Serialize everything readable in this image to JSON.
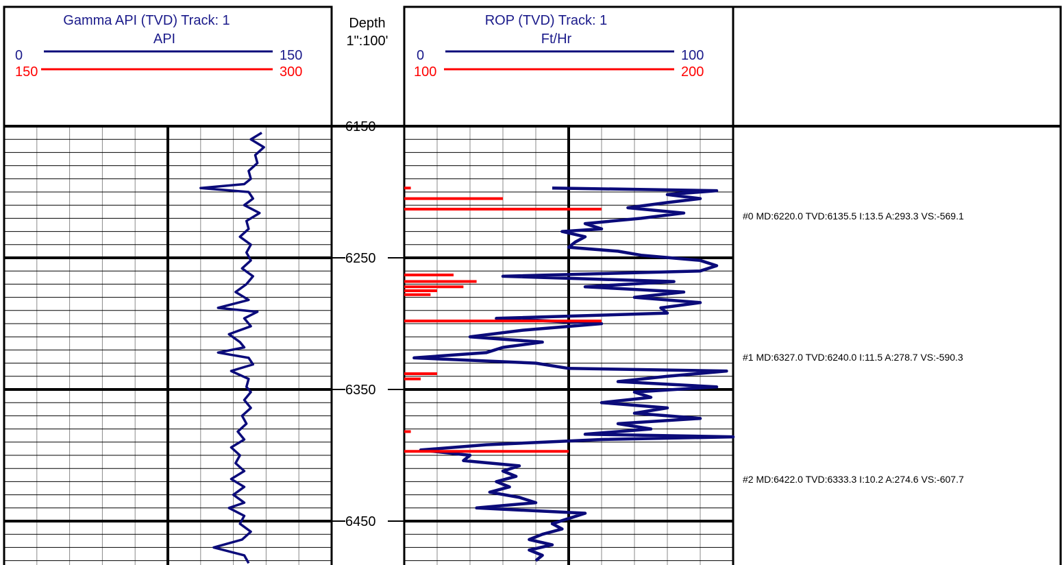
{
  "colors": {
    "gamma": "#0b0b7a",
    "red": "#ff0000",
    "grid": "#888888",
    "frame": "#000000"
  },
  "gamma_track": {
    "title": "Gamma API (TVD) Track: 1",
    "unit": "API",
    "scale_primary": {
      "left": "0",
      "right": "150"
    },
    "scale_secondary": {
      "left": "150",
      "right": "300"
    }
  },
  "depth_track": {
    "title": "Depth",
    "scale": "1\":100'",
    "labels": [
      "6150",
      "6250",
      "6350",
      "6450"
    ]
  },
  "rop_track": {
    "title": "ROP (TVD) Track: 1",
    "unit": "Ft/Hr",
    "scale_primary": {
      "left": "0",
      "right": "100"
    },
    "scale_secondary": {
      "left": "100",
      "right": "200"
    }
  },
  "survey_annotations": [
    "#0 MD:6220.0 TVD:6135.5 I:13.5 A:293.3 VS:-569.1",
    "#1 MD:6327.0 TVD:6240.0 I:11.5 A:278.7 VS:-590.3",
    "#2 MD:6422.0 TVD:6333.3 I:10.2 A:274.6 VS:-607.7"
  ],
  "chart_data": {
    "type": "line",
    "y_axis": {
      "name": "Depth (TVD)",
      "range": [
        6150,
        6483
      ],
      "inverted": true,
      "ticks": [
        6150,
        6250,
        6350,
        6450
      ]
    },
    "series": [
      {
        "name": "Gamma API",
        "x_range": [
          0,
          150
        ],
        "points": [
          [
            6155,
            118
          ],
          [
            6160,
            113
          ],
          [
            6166,
            119
          ],
          [
            6172,
            115
          ],
          [
            6178,
            116
          ],
          [
            6184,
            112
          ],
          [
            6190,
            113
          ],
          [
            6194,
            110
          ],
          [
            6197,
            90
          ],
          [
            6200,
            112
          ],
          [
            6205,
            114
          ],
          [
            6210,
            110
          ],
          [
            6216,
            117
          ],
          [
            6222,
            111
          ],
          [
            6228,
            112
          ],
          [
            6234,
            108
          ],
          [
            6240,
            113
          ],
          [
            6246,
            111
          ],
          [
            6252,
            113
          ],
          [
            6258,
            109
          ],
          [
            6264,
            114
          ],
          [
            6270,
            111
          ],
          [
            6276,
            106
          ],
          [
            6282,
            112
          ],
          [
            6288,
            98
          ],
          [
            6291,
            116
          ],
          [
            6296,
            110
          ],
          [
            6302,
            113
          ],
          [
            6308,
            103
          ],
          [
            6314,
            108
          ],
          [
            6318,
            110
          ],
          [
            6322,
            98
          ],
          [
            6326,
            112
          ],
          [
            6331,
            114
          ],
          [
            6336,
            104
          ],
          [
            6342,
            112
          ],
          [
            6348,
            111
          ],
          [
            6352,
            113
          ],
          [
            6358,
            110
          ],
          [
            6364,
            113
          ],
          [
            6370,
            109
          ],
          [
            6376,
            111
          ],
          [
            6382,
            107
          ],
          [
            6388,
            110
          ],
          [
            6394,
            104
          ],
          [
            6400,
            108
          ],
          [
            6406,
            106
          ],
          [
            6412,
            110
          ],
          [
            6418,
            104
          ],
          [
            6424,
            110
          ],
          [
            6430,
            105
          ],
          [
            6436,
            110
          ],
          [
            6440,
            103
          ],
          [
            6446,
            110
          ],
          [
            6452,
            108
          ],
          [
            6458,
            113
          ],
          [
            6464,
            109
          ],
          [
            6470,
            96
          ],
          [
            6476,
            110
          ],
          [
            6482,
            112
          ]
        ]
      },
      {
        "name": "ROP",
        "x_range": [
          0,
          100
        ],
        "points": [
          [
            6197,
            45
          ],
          [
            6199,
            95
          ],
          [
            6202,
            80
          ],
          [
            6205,
            90
          ],
          [
            6208,
            80
          ],
          [
            6212,
            68
          ],
          [
            6216,
            85
          ],
          [
            6220,
            72
          ],
          [
            6224,
            55
          ],
          [
            6228,
            60
          ],
          [
            6230,
            48
          ],
          [
            6234,
            55
          ],
          [
            6238,
            52
          ],
          [
            6242,
            50
          ],
          [
            6245,
            65
          ],
          [
            6248,
            72
          ],
          [
            6252,
            90
          ],
          [
            6256,
            95
          ],
          [
            6260,
            90
          ],
          [
            6264,
            30
          ],
          [
            6268,
            82
          ],
          [
            6272,
            55
          ],
          [
            6276,
            85
          ],
          [
            6280,
            70
          ],
          [
            6284,
            90
          ],
          [
            6288,
            78
          ],
          [
            6292,
            80
          ],
          [
            6296,
            28
          ],
          [
            6300,
            60
          ],
          [
            6305,
            36
          ],
          [
            6310,
            20
          ],
          [
            6314,
            42
          ],
          [
            6318,
            30
          ],
          [
            6322,
            25
          ],
          [
            6326,
            3
          ],
          [
            6330,
            40
          ],
          [
            6334,
            50
          ],
          [
            6336,
            98
          ],
          [
            6340,
            80
          ],
          [
            6344,
            65
          ],
          [
            6348,
            95
          ],
          [
            6352,
            70
          ],
          [
            6356,
            75
          ],
          [
            6360,
            60
          ],
          [
            6364,
            80
          ],
          [
            6368,
            70
          ],
          [
            6372,
            90
          ],
          [
            6376,
            65
          ],
          [
            6380,
            75
          ],
          [
            6384,
            55
          ],
          [
            6386,
            100
          ],
          [
            6388,
            60
          ],
          [
            6392,
            25
          ],
          [
            6396,
            5
          ],
          [
            6400,
            20
          ],
          [
            6404,
            18
          ],
          [
            6408,
            35
          ],
          [
            6412,
            30
          ],
          [
            6416,
            34
          ],
          [
            6420,
            28
          ],
          [
            6424,
            32
          ],
          [
            6428,
            26
          ],
          [
            6432,
            35
          ],
          [
            6436,
            40
          ],
          [
            6440,
            22
          ],
          [
            6444,
            55
          ],
          [
            6448,
            50
          ],
          [
            6452,
            45
          ],
          [
            6456,
            48
          ],
          [
            6460,
            42
          ],
          [
            6464,
            38
          ],
          [
            6468,
            45
          ],
          [
            6472,
            38
          ],
          [
            6476,
            42
          ],
          [
            6480,
            40
          ]
        ]
      }
    ],
    "rop_backup_excursions": [
      {
        "depth": 6197,
        "rop": 102
      },
      {
        "depth": 6205,
        "rop": 130
      },
      {
        "depth": 6213,
        "rop": 160
      },
      {
        "depth": 6263,
        "rop": 115
      },
      {
        "depth": 6268,
        "rop": 122
      },
      {
        "depth": 6272,
        "rop": 118
      },
      {
        "depth": 6275,
        "rop": 110
      },
      {
        "depth": 6278,
        "rop": 108
      },
      {
        "depth": 6298,
        "rop": 160
      },
      {
        "depth": 6338,
        "rop": 110
      },
      {
        "depth": 6342,
        "rop": 105
      },
      {
        "depth": 6382,
        "rop": 102
      },
      {
        "depth": 6397,
        "rop": 150
      }
    ]
  }
}
